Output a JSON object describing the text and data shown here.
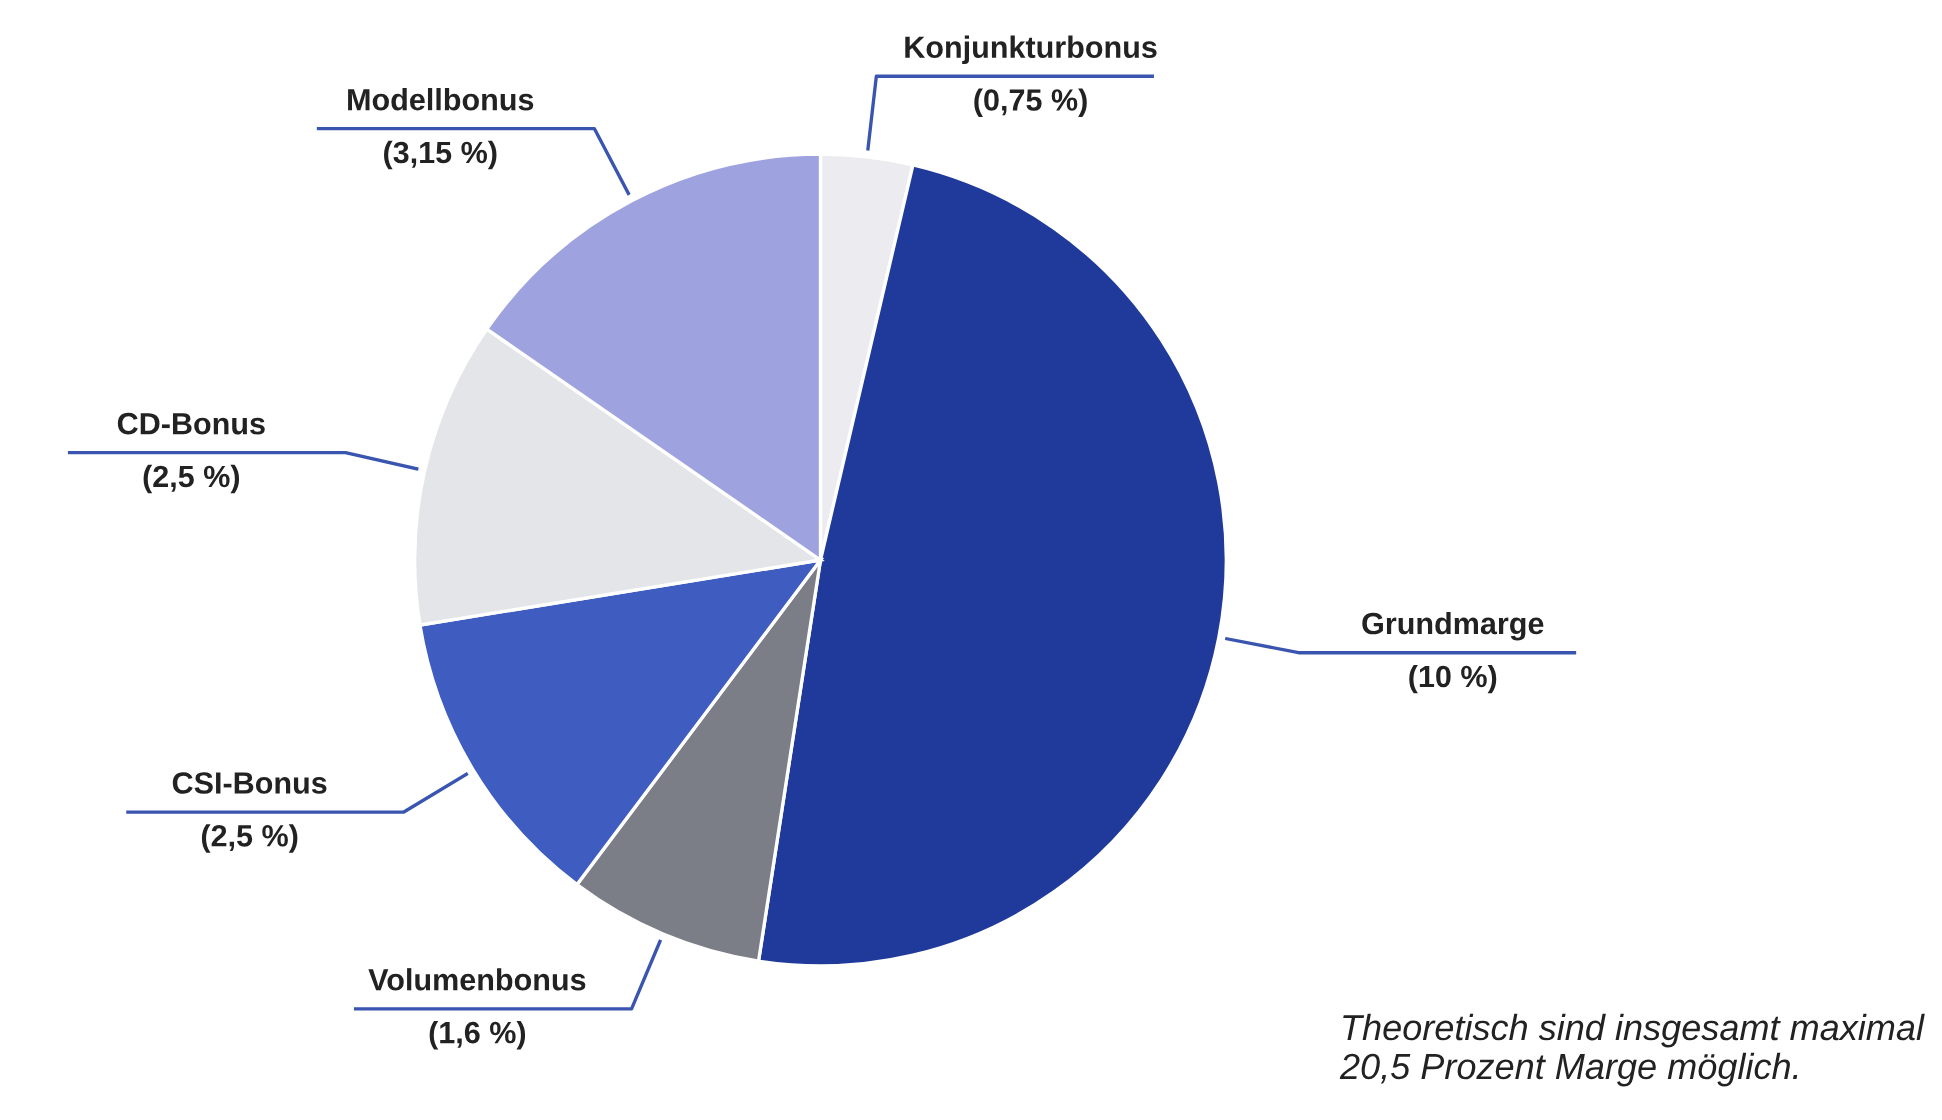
{
  "chart_data": {
    "type": "pie",
    "categories": [
      "Konjunkturbonus",
      "Grundmarge",
      "Volumenbonus",
      "CSI-Bonus",
      "CD-Bonus",
      "Modellbonus"
    ],
    "values": [
      0.75,
      10,
      1.6,
      2.5,
      2.5,
      3.15
    ],
    "value_labels": [
      "(0,75 %)",
      "(10 %)",
      "(1,6 %)",
      "(2,5 %)",
      "(2,5 %)",
      "(3,15 %)"
    ],
    "colors": [
      "#ececf0",
      "#1f3a9a",
      "#7b7e86",
      "#3f5cc0",
      "#e4e5e9",
      "#9ea3e0"
    ],
    "annotations": [
      "Theoretisch sind insgesamt maximal 20,5 Prozent Marge möglich."
    ]
  }
}
